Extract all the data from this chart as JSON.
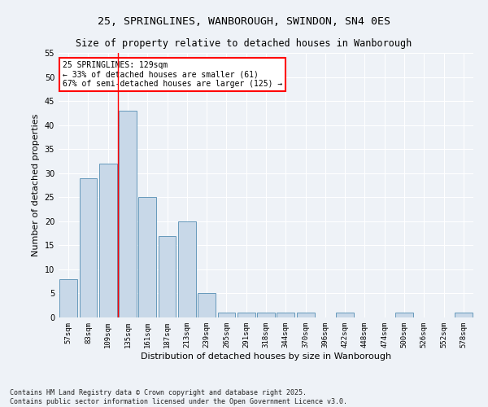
{
  "title1": "25, SPRINGLINES, WANBOROUGH, SWINDON, SN4 0ES",
  "title2": "Size of property relative to detached houses in Wanborough",
  "xlabel": "Distribution of detached houses by size in Wanborough",
  "ylabel": "Number of detached properties",
  "categories": [
    "57sqm",
    "83sqm",
    "109sqm",
    "135sqm",
    "161sqm",
    "187sqm",
    "213sqm",
    "239sqm",
    "265sqm",
    "291sqm",
    "318sqm",
    "344sqm",
    "370sqm",
    "396sqm",
    "422sqm",
    "448sqm",
    "474sqm",
    "500sqm",
    "526sqm",
    "552sqm",
    "578sqm"
  ],
  "values": [
    8,
    29,
    32,
    43,
    25,
    17,
    20,
    5,
    1,
    1,
    1,
    1,
    1,
    0,
    1,
    0,
    0,
    1,
    0,
    0,
    1
  ],
  "bar_color": "#c8d8e8",
  "bar_edge_color": "#6699bb",
  "redline_index": 2.5,
  "annotation_text": "25 SPRINGLINES: 129sqm\n← 33% of detached houses are smaller (61)\n67% of semi-detached houses are larger (125) →",
  "annotation_box_color": "white",
  "annotation_box_edge": "red",
  "footer": "Contains HM Land Registry data © Crown copyright and database right 2025.\nContains public sector information licensed under the Open Government Licence v3.0.",
  "ylim": [
    0,
    55
  ],
  "yticks": [
    0,
    5,
    10,
    15,
    20,
    25,
    30,
    35,
    40,
    45,
    50,
    55
  ],
  "background_color": "#eef2f7",
  "grid_color": "#ffffff",
  "title_fontsize": 9.5,
  "subtitle_fontsize": 8.5,
  "tick_fontsize": 6.5,
  "ylabel_fontsize": 8,
  "xlabel_fontsize": 8,
  "annotation_fontsize": 7,
  "footer_fontsize": 6
}
